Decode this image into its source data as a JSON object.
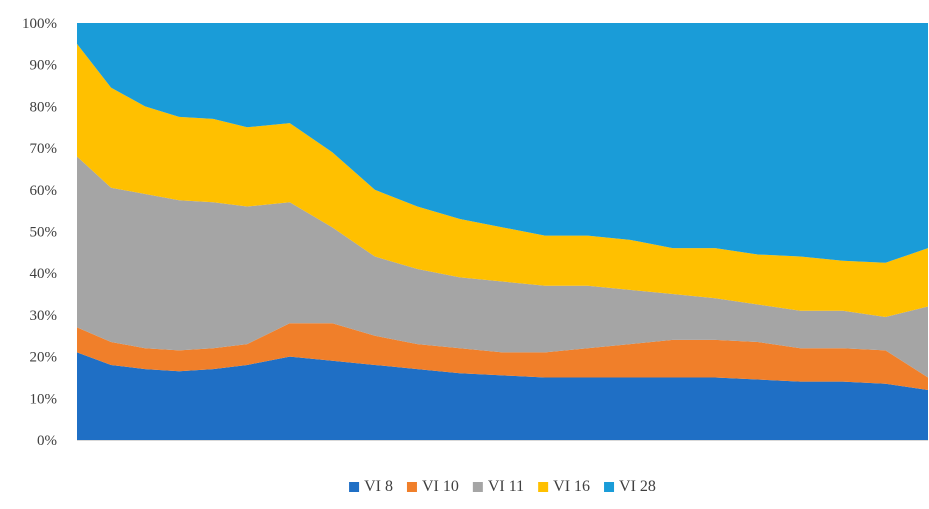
{
  "chart_data": {
    "type": "area",
    "stacked": true,
    "percent_stacked": true,
    "title": "",
    "xlabel": "",
    "ylabel": "",
    "ylim": [
      0,
      100
    ],
    "y_ticks": [
      "0%",
      "10%",
      "20%",
      "30%",
      "40%",
      "50%",
      "60%",
      "70%",
      "80%",
      "90%",
      "100%"
    ],
    "x_tick_labels_shown": false,
    "grid": false,
    "legend_position": "bottom",
    "x": [
      0,
      4,
      8,
      12,
      16,
      20,
      25,
      30,
      35,
      40,
      45,
      50,
      55,
      60,
      65,
      70,
      75,
      80,
      85,
      90,
      95,
      100
    ],
    "series": [
      {
        "name": "VI 8",
        "color": "#1F6FC5",
        "values": [
          21,
          18,
          17,
          16.5,
          17,
          18,
          20,
          19,
          18,
          17,
          16,
          15.5,
          15,
          15,
          15,
          15,
          15,
          14.5,
          14,
          14,
          13.5,
          12
        ]
      },
      {
        "name": "VI 10",
        "color": "#F07F2A",
        "values": [
          6,
          5.5,
          5,
          5,
          5,
          5,
          8,
          9,
          7,
          6,
          6,
          5.5,
          6,
          7,
          8,
          9,
          9,
          9,
          8,
          8,
          8,
          3
        ]
      },
      {
        "name": "VI 11",
        "color": "#A5A5A5",
        "values": [
          41,
          37,
          37,
          36,
          35,
          33,
          29,
          23,
          19,
          18,
          17,
          17,
          16,
          15,
          13,
          11,
          10,
          9,
          9,
          9,
          8,
          17
        ]
      },
      {
        "name": "VI 16",
        "color": "#FFC000",
        "values": [
          27,
          24,
          21,
          20,
          20,
          19,
          19,
          18,
          16,
          15,
          14,
          13,
          12,
          12,
          12,
          11,
          12,
          12,
          13,
          12,
          13,
          14
        ]
      },
      {
        "name": "VI 28",
        "color": "#1A9CD8",
        "values": [
          5,
          15.5,
          20,
          22.5,
          23,
          25,
          24,
          31,
          40,
          44,
          47,
          49,
          51,
          51,
          52,
          54,
          54,
          55.5,
          56,
          57,
          57.5,
          54
        ]
      }
    ]
  }
}
